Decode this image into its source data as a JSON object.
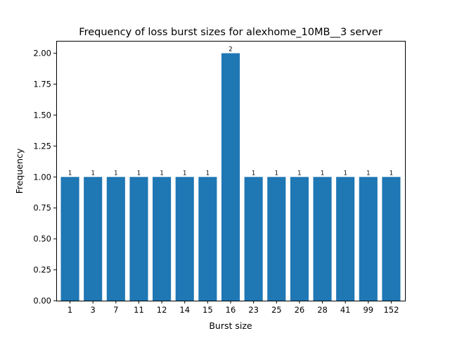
{
  "chart_data": {
    "type": "bar",
    "title": "Frequency of loss burst sizes for alexhome_10MB__3 server",
    "xlabel": "Burst size",
    "ylabel": "Frequency",
    "categories": [
      "1",
      "3",
      "7",
      "11",
      "12",
      "14",
      "15",
      "16",
      "23",
      "25",
      "26",
      "28",
      "41",
      "99",
      "152"
    ],
    "values": [
      1,
      1,
      1,
      1,
      1,
      1,
      1,
      2,
      1,
      1,
      1,
      1,
      1,
      1,
      1
    ],
    "ylim": [
      0,
      2.1
    ],
    "yticks": [
      0.0,
      0.25,
      0.5,
      0.75,
      1.0,
      1.25,
      1.5,
      1.75,
      2.0
    ],
    "ytick_labels": [
      "0.00",
      "0.25",
      "0.50",
      "0.75",
      "1.00",
      "1.25",
      "1.50",
      "1.75",
      "2.00"
    ],
    "data_labels": [
      "1",
      "1",
      "1",
      "1",
      "1",
      "1",
      "1",
      "2",
      "1",
      "1",
      "1",
      "1",
      "1",
      "1",
      "1"
    ],
    "bar_color": "#1f77b4",
    "grid": false,
    "legend": "none"
  }
}
